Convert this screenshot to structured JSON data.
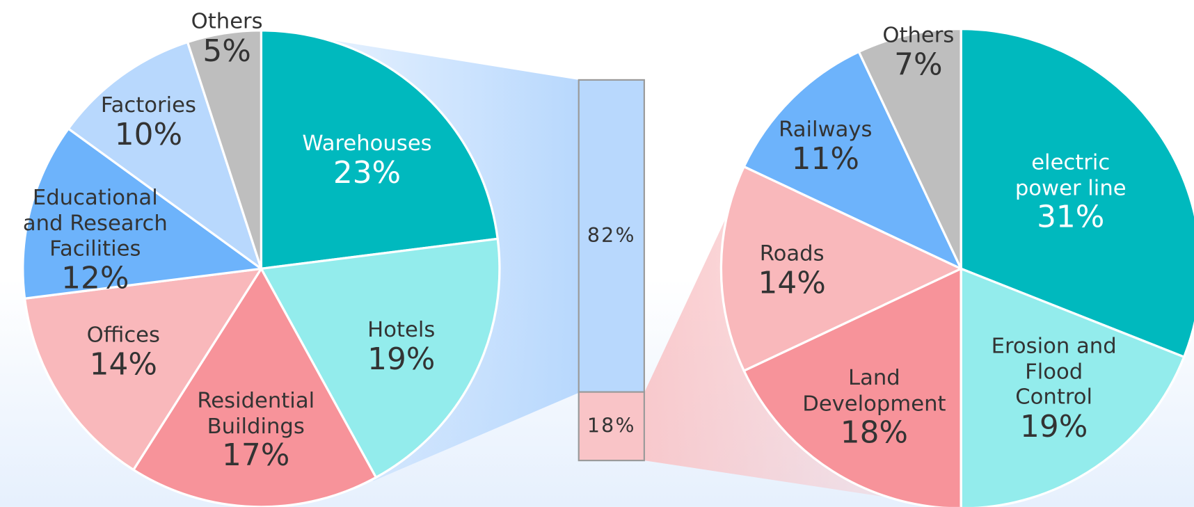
{
  "chart_data": [
    {
      "type": "pie",
      "categories": [
        "Warehouses",
        "Hotels",
        "Residential\nBuildings",
        "Offices",
        "Educational\nand Research\nFacilities",
        "Factories",
        "Others"
      ],
      "values": [
        23,
        19,
        17,
        14,
        12,
        10,
        5
      ],
      "value_labels": [
        "23%",
        "19%",
        "17%",
        "14%",
        "12%",
        "10%",
        "5%"
      ],
      "colors": [
        "#00b9be",
        "#93ecec",
        "#f7939a",
        "#f9b8bb",
        "#6db3fb",
        "#b8d8fd",
        "#bebebe"
      ]
    },
    {
      "type": "stacked_bar",
      "values": [
        82,
        18
      ],
      "value_labels": [
        "82%",
        "18%"
      ],
      "colors": [
        "#b8d8fd",
        "#f9c4c7"
      ]
    },
    {
      "type": "pie",
      "categories": [
        "electric\npower line",
        "Erosion and\nFlood Control",
        "Land\nDevelopment",
        "Roads",
        "Railways",
        "Others"
      ],
      "values": [
        31,
        19,
        18,
        14,
        11,
        7
      ],
      "value_labels": [
        "31%",
        "19%",
        "18%",
        "14%",
        "11%",
        "7%"
      ],
      "colors": [
        "#00b9be",
        "#93ecec",
        "#f7939a",
        "#f9b8bb",
        "#6db3fb",
        "#bebebe"
      ]
    }
  ]
}
